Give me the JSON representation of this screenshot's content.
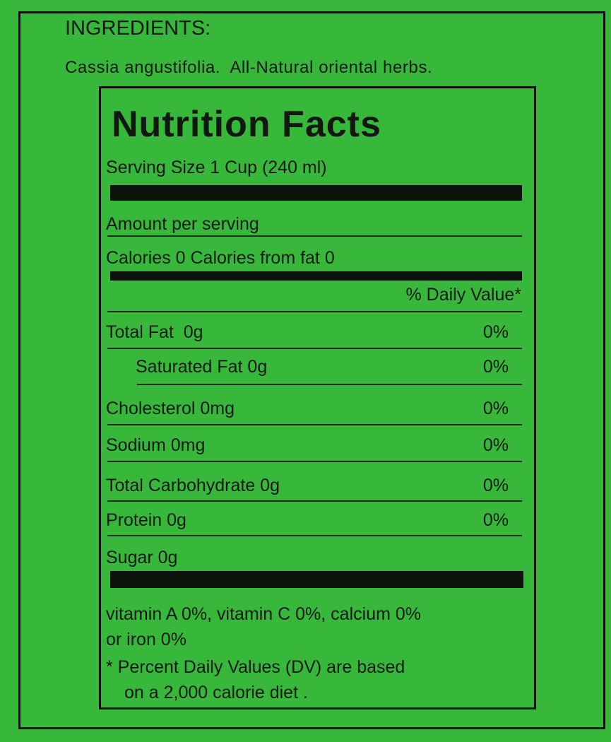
{
  "ingredients": {
    "heading": "INGREDIENTS:",
    "text": "Cassia angustifolia.  All-Natural oriental herbs."
  },
  "nutrition": {
    "title": "Nutrition Facts",
    "serving": "Serving Size 1 Cup (240 ml)",
    "amount": "Amount per serving",
    "calories": "Calories 0 Calories from fat 0",
    "dv_header": "% Daily Value*",
    "rows": [
      {
        "label": "Total Fat  0g",
        "dv": "0%"
      },
      {
        "label": "Saturated Fat 0g",
        "dv": "0%"
      },
      {
        "label": "Cholesterol 0mg",
        "dv": "0%"
      },
      {
        "label": "Sodium 0mg",
        "dv": "0%"
      },
      {
        "label": "Total Carbohydrate 0g",
        "dv": "0%"
      },
      {
        "label": "Protein 0g",
        "dv": "0%"
      }
    ],
    "sugar": "Sugar 0g",
    "vitamins": [
      "vitamin A 0%, vitamin C 0%, calcium 0%",
      "or iron 0%"
    ],
    "footnote": [
      "* Percent Daily Values (DV) are based",
      "on a 2,000 calorie diet ."
    ]
  }
}
